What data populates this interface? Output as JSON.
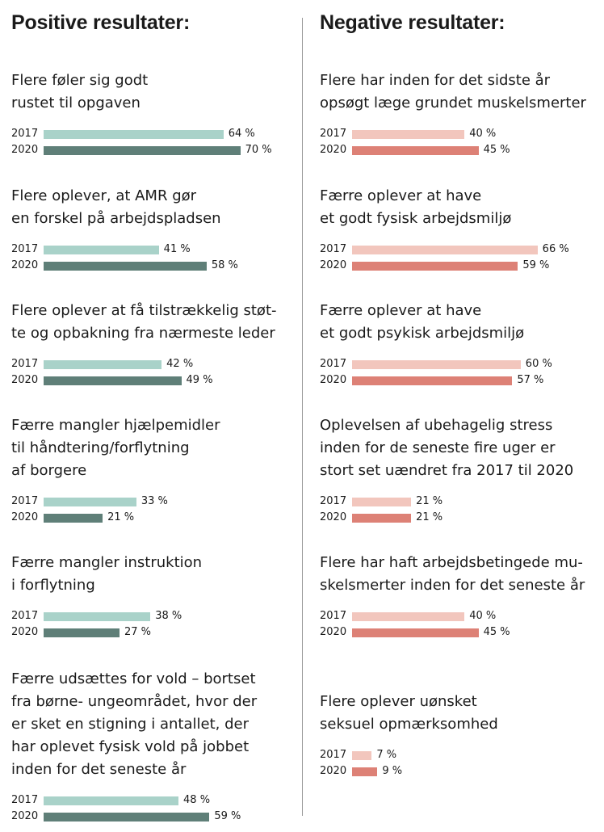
{
  "titles": {
    "positive": "Positive resultater:",
    "negative": "Negative resultater:"
  },
  "colors": {
    "positive_2017": "#a9d2c9",
    "positive_2020": "#5f7f78",
    "negative_2017": "#f2c6bd",
    "negative_2020": "#dd8176"
  },
  "chart_data": [
    {
      "type": "bar",
      "panel": "positive",
      "title": "Positive resultater:",
      "series": [
        {
          "name": "2017"
        },
        {
          "name": "2020"
        }
      ],
      "unit": "%",
      "items": [
        {
          "title": "Flere føler sig godt\nrustet til opgaven",
          "values": [
            64,
            70
          ],
          "labels": [
            "64 %",
            "70 %"
          ]
        },
        {
          "title": "Flere oplever, at AMR gør\nen forskel på arbejdspladsen",
          "values": [
            41,
            58
          ],
          "labels": [
            "41 %",
            "58 %"
          ]
        },
        {
          "title": "Flere oplever at få tilstrækkelig støt-\nte og opbakning fra nærmeste leder",
          "values": [
            42,
            49
          ],
          "labels": [
            "42 %",
            "49 %"
          ]
        },
        {
          "title": "Færre mangler hjælpemidler\ntil håndtering/forflytning\naf borgere",
          "values": [
            33,
            21
          ],
          "labels": [
            "33 %",
            "21 %"
          ]
        },
        {
          "title": "Færre mangler instruktion\ni forflytning",
          "values": [
            38,
            27
          ],
          "labels": [
            "38 %",
            "27 %"
          ]
        },
        {
          "title": "Færre udsættes for vold – bortset\nfra børne- ungeområdet, hvor der\ner sket en stigning i antallet, der\nhar oplevet fysisk vold på jobbet\ninden for det seneste år",
          "values": [
            48,
            59
          ],
          "labels": [
            "48 %",
            "59 %"
          ]
        }
      ]
    },
    {
      "type": "bar",
      "panel": "negative",
      "title": "Negative resultater:",
      "series": [
        {
          "name": "2017"
        },
        {
          "name": "2020"
        }
      ],
      "unit": "%",
      "items": [
        {
          "title": "Flere har inden for det sidste år\nopsøgt læge grundet muskelsmerter",
          "values": [
            40,
            45
          ],
          "labels": [
            "40 %",
            "45 %"
          ]
        },
        {
          "title": "Færre oplever at have\net godt fysisk arbejdsmiljø",
          "values": [
            66,
            59
          ],
          "labels": [
            "66 %",
            "59 %"
          ]
        },
        {
          "title": "Færre oplever at have\net godt psykisk arbejdsmiljø",
          "values": [
            60,
            57
          ],
          "labels": [
            "60 %",
            "57 %"
          ]
        },
        {
          "title": "Oplevelsen af ubehagelig stress\ninden for de seneste fire uger er\nstort set uændret fra 2017 til 2020",
          "values": [
            21,
            21
          ],
          "labels": [
            "21 %",
            "21 %"
          ]
        },
        {
          "title": "Flere har haft arbejdsbetingede mu-\nskelsmerter inden for det seneste år",
          "values": [
            40,
            45
          ],
          "labels": [
            "40 %",
            "45 %"
          ]
        },
        {
          "title": "Flere oplever uønsket\nseksuel opmærksomhed",
          "values": [
            7,
            9
          ],
          "labels": [
            "7 %",
            "9 %"
          ]
        }
      ]
    }
  ]
}
